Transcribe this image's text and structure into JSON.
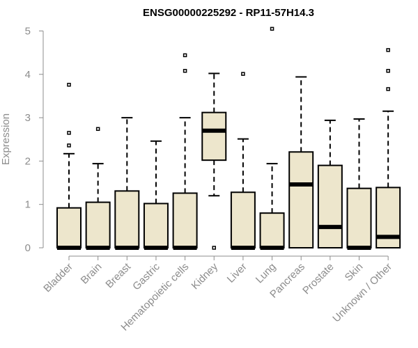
{
  "chart_data": {
    "type": "boxplot",
    "title": "ENSG00000225292 - RP11-57H14.3",
    "ylabel": "Expression",
    "xlabel": "",
    "ylim": [
      0,
      5
    ],
    "yticks": [
      0,
      1,
      2,
      3,
      4,
      5
    ],
    "grid": false,
    "box_fill": "#ede6cc",
    "categories": [
      "Bladder",
      "Brain",
      "Breast",
      "Gastric",
      "Hematopoietic cells",
      "Kidney",
      "Liver",
      "Lung",
      "Pancreas",
      "Prostate",
      "Skin",
      "Unknown / Other"
    ],
    "boxes": [
      {
        "name": "Bladder",
        "whisker_low": 0,
        "q1": 0,
        "median": 0,
        "q3": 0.92,
        "whisker_high": 2.17,
        "outliers": [
          2.36,
          2.65,
          3.76
        ]
      },
      {
        "name": "Brain",
        "whisker_low": 0,
        "q1": 0,
        "median": 0,
        "q3": 1.05,
        "whisker_high": 1.94,
        "outliers": [
          2.74
        ]
      },
      {
        "name": "Breast",
        "whisker_low": 0,
        "q1": 0,
        "median": 0,
        "q3": 1.31,
        "whisker_high": 3.0,
        "outliers": []
      },
      {
        "name": "Gastric",
        "whisker_low": 0,
        "q1": 0,
        "median": 0,
        "q3": 1.02,
        "whisker_high": 2.46,
        "outliers": []
      },
      {
        "name": "Hematopoietic cells",
        "whisker_low": 0,
        "q1": 0,
        "median": 0,
        "q3": 1.26,
        "whisker_high": 3.0,
        "outliers": [
          4.08,
          4.44
        ]
      },
      {
        "name": "Kidney",
        "whisker_low": 1.2,
        "q1": 2.02,
        "median": 2.7,
        "q3": 3.12,
        "whisker_high": 4.02,
        "outliers": [
          0
        ]
      },
      {
        "name": "Liver",
        "whisker_low": 0,
        "q1": 0,
        "median": 0,
        "q3": 1.28,
        "whisker_high": 2.51,
        "outliers": [
          4.01
        ]
      },
      {
        "name": "Lung",
        "whisker_low": 0,
        "q1": 0,
        "median": 0,
        "q3": 0.8,
        "whisker_high": 1.94,
        "outliers": [
          5.05
        ]
      },
      {
        "name": "Pancreas",
        "whisker_low": 0,
        "q1": 0,
        "median": 1.46,
        "q3": 2.21,
        "whisker_high": 3.94,
        "outliers": []
      },
      {
        "name": "Prostate",
        "whisker_low": 0,
        "q1": 0,
        "median": 0.48,
        "q3": 1.9,
        "whisker_high": 2.94,
        "outliers": []
      },
      {
        "name": "Skin",
        "whisker_low": 0,
        "q1": 0,
        "median": 0,
        "q3": 1.37,
        "whisker_high": 2.97,
        "outliers": []
      },
      {
        "name": "Unknown / Other",
        "whisker_low": 0,
        "q1": 0,
        "median": 0.25,
        "q3": 1.39,
        "whisker_high": 3.15,
        "outliers": [
          3.66,
          4.08,
          4.56
        ]
      }
    ]
  }
}
